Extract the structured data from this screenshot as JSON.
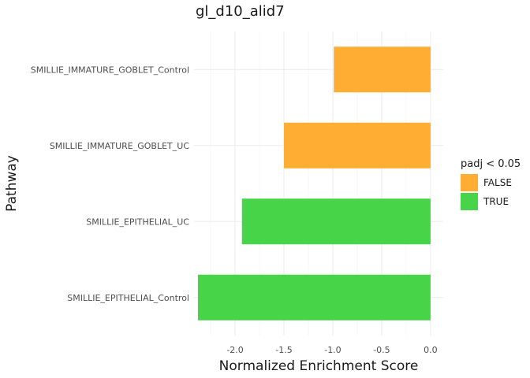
{
  "chart_data": {
    "type": "bar",
    "orientation": "horizontal",
    "title": "gl_d10_alid7",
    "xlabel": "Normalized Enrichment Score",
    "ylabel": "Pathway",
    "xlim": [
      -2.42,
      0.13
    ],
    "x_ticks": [
      -2.0,
      -1.5,
      -1.0,
      -0.5,
      0.0
    ],
    "x_tick_labels": [
      "-2.0",
      "-1.5",
      "-1.0",
      "-0.5",
      "0.0"
    ],
    "grid": true,
    "categories": [
      "SMILLIE_IMMATURE_GOBLET_Control",
      "SMILLIE_IMMATURE_GOBLET_UC",
      "SMILLIE_EPITHELIAL_UC",
      "SMILLIE_EPITHELIAL_Control"
    ],
    "values": [
      -0.99,
      -1.5,
      -1.93,
      -2.38
    ],
    "padj_significant": [
      "FALSE",
      "FALSE",
      "TRUE",
      "TRUE"
    ],
    "legend": {
      "title": "padj < 0.05",
      "position": "right",
      "entries": [
        {
          "label": "FALSE",
          "color": "#FFAD33"
        },
        {
          "label": "TRUE",
          "color": "#48D448"
        }
      ]
    }
  }
}
